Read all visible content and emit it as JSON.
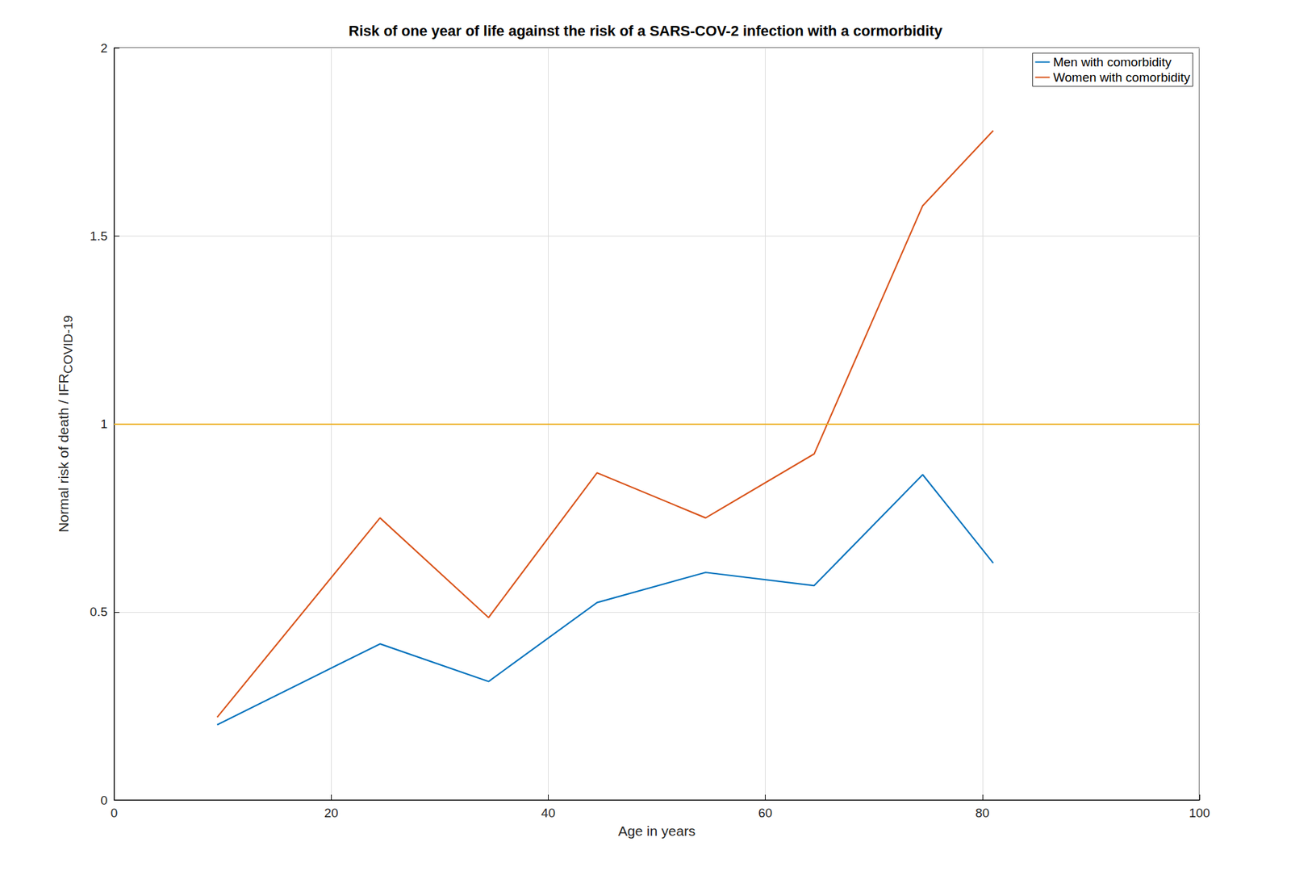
{
  "chart_data": {
    "type": "line",
    "title": "Risk of one year of life against the risk of a SARS-COV-2 infection with a cormorbidity",
    "x_label": "Age in years",
    "y_label": "Normal risk of death / IFR",
    "y_label_subscript": "COVID-19",
    "x": [
      9.5,
      24.5,
      34.5,
      44.5,
      54.5,
      64.5,
      74.5,
      81
    ],
    "series": [
      {
        "name": "Men with comorbidity",
        "color": "#0072bd",
        "values": [
          0.2,
          0.415,
          0.315,
          0.525,
          0.605,
          0.57,
          0.865,
          0.63
        ]
      },
      {
        "name": "Women with comorbidity",
        "color": "#d95319",
        "values": [
          0.22,
          0.75,
          0.485,
          0.87,
          0.75,
          0.92,
          1.58,
          1.78
        ]
      }
    ],
    "reference_lines": [
      {
        "y": 1,
        "color": "#edb120"
      }
    ],
    "xlim": [
      0,
      100
    ],
    "xticks": [
      0,
      20,
      40,
      60,
      80,
      100
    ],
    "ylim": [
      0,
      2
    ],
    "yticks": [
      0,
      0.5,
      1,
      1.5,
      2
    ],
    "grid": true,
    "legend": "northeast"
  }
}
